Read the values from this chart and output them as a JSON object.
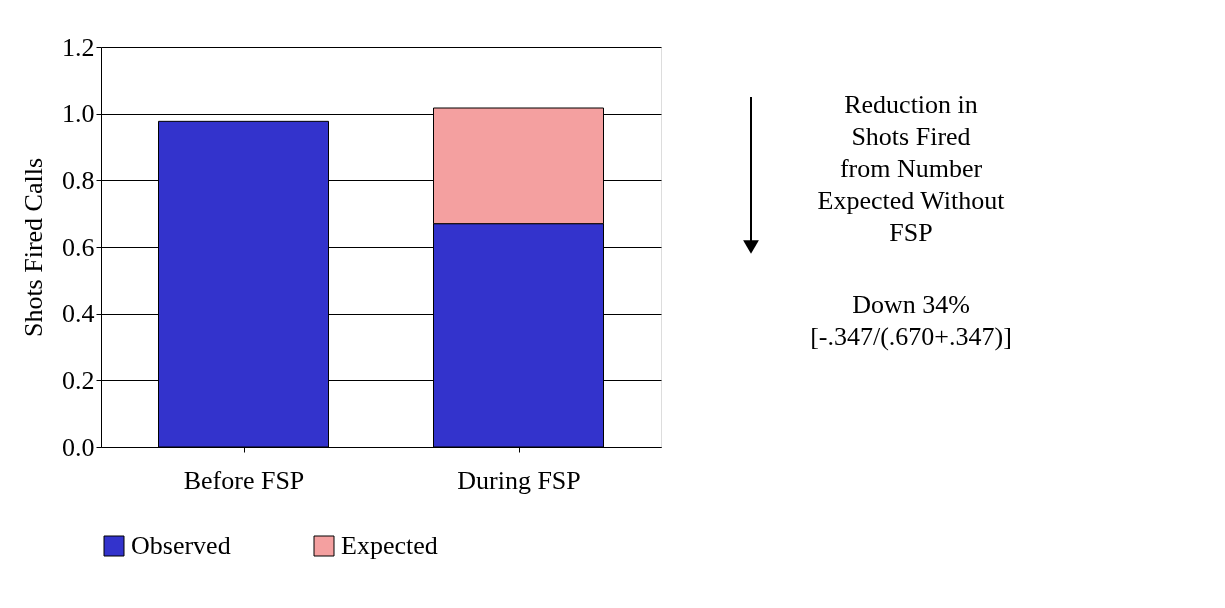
{
  "chart_data": {
    "type": "bar",
    "stacked": true,
    "ylabel": "Shots Fired Calls",
    "categories": [
      "Before FSP",
      "During FSP"
    ],
    "series": [
      {
        "name": "Observed",
        "color": "#3333cc",
        "values": [
          0.977,
          0.67
        ]
      },
      {
        "name": "Expected",
        "color": "#f4a0a0",
        "values": [
          null,
          0.347
        ]
      }
    ],
    "ylim": [
      0,
      1.2
    ],
    "yticks": [
      {
        "value": 0,
        "label": "0.0"
      },
      0.2,
      0.4,
      0.6,
      0.8,
      {
        "value": 1,
        "label": "1.0"
      },
      1.2
    ],
    "grid": "y",
    "legend": "bottom",
    "annotations": [
      "Reduction in\nShots Fired\nfrom  Number\nExpected Without\nFSP",
      "Down 34%\n[-.347/(.670+.347)]"
    ]
  }
}
